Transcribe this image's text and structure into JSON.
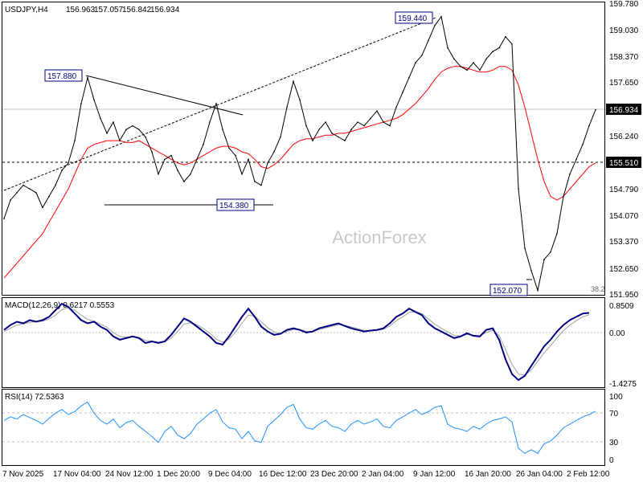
{
  "chart_data": {
    "type": "line",
    "symbol": "USDJPY,H4",
    "ohlc": [
      "156.963",
      "157.057",
      "156.842",
      "156.934"
    ],
    "watermark": "ActionForex",
    "colors": {
      "price": "#000000",
      "ma": "#ff0000",
      "macd": "#000080",
      "macd_signal": "#a0a0a0",
      "rsi": "#1e90ff",
      "label_border": "#000080",
      "grid_level": "#c0c0c0"
    },
    "price_axis": {
      "ticks": [
        "159.780",
        "159.030",
        "158.370",
        "157.650",
        "156.990",
        "156.240",
        "155.510",
        "154.790",
        "154.070",
        "153.370",
        "152.650",
        "151.950"
      ],
      "ylim": [
        151.95,
        159.78
      ]
    },
    "x_axis": {
      "ticks": [
        "7 Nov 2025",
        "17 Nov 04:00",
        "24 Nov 12:00",
        "1 Dec 20:00",
        "9 Dec 04:00",
        "16 Dec 12:00",
        "23 Dec 20:00",
        "2 Jan 04:00",
        "9 Jan 12:00",
        "16 Jan 20:00",
        "26 Jan 04:00",
        "2 Feb 12:00"
      ]
    },
    "current_price": {
      "value": 156.934,
      "label": "156.934"
    },
    "support_level": {
      "value": 155.51,
      "label": "155.510"
    },
    "annotations": [
      {
        "label": "157.880",
        "value": 157.88
      },
      {
        "label": "159.440",
        "value": 159.44
      },
      {
        "label": "154.380",
        "value": 154.38
      },
      {
        "label": "152.070",
        "value": 152.07
      }
    ],
    "fib_label": "38.2",
    "price_series": {
      "name": "USDJPY",
      "x": [
        0,
        8,
        16,
        24,
        32,
        40,
        48,
        56,
        64,
        72,
        80,
        88,
        96,
        104,
        112,
        120,
        128,
        136,
        144,
        152,
        160,
        168,
        176,
        184,
        192,
        200,
        208,
        216,
        224,
        232,
        240,
        248,
        256,
        264,
        272,
        280,
        288,
        296,
        304,
        312,
        320,
        328,
        336,
        344,
        352,
        360,
        368,
        376,
        384,
        392,
        400,
        408,
        416,
        424,
        432,
        440,
        448,
        456,
        464,
        472,
        480,
        488,
        496,
        504,
        512,
        520,
        528,
        536,
        544,
        552,
        560,
        568,
        576,
        584,
        592,
        600,
        608,
        616,
        624,
        632,
        640,
        648,
        656,
        664,
        672,
        680,
        688,
        696,
        704,
        712,
        720,
        728,
        736
      ],
      "values": [
        154.0,
        154.5,
        154.7,
        154.9,
        154.8,
        154.7,
        154.3,
        154.6,
        154.9,
        155.3,
        155.5,
        156.1,
        157.1,
        157.8,
        157.2,
        156.7,
        156.3,
        156.6,
        156.1,
        156.4,
        156.5,
        156.4,
        156.2,
        155.8,
        155.2,
        155.6,
        155.7,
        155.3,
        155.0,
        155.2,
        155.6,
        156.0,
        156.6,
        157.1,
        156.4,
        155.9,
        155.7,
        155.2,
        155.6,
        155.0,
        154.9,
        155.5,
        155.8,
        156.2,
        157.0,
        157.7,
        157.2,
        156.5,
        156.1,
        156.4,
        156.6,
        156.3,
        156.2,
        156.1,
        156.4,
        156.6,
        156.5,
        156.7,
        156.9,
        156.6,
        156.5,
        157.0,
        157.4,
        157.8,
        158.2,
        158.4,
        158.8,
        159.2,
        159.44,
        158.6,
        158.3,
        158.1,
        158.0,
        158.2,
        158.0,
        158.3,
        158.5,
        158.6,
        158.9,
        158.7,
        154.8,
        153.2,
        152.6,
        152.07,
        152.9,
        153.1,
        153.6,
        154.6,
        155.2,
        155.6,
        156.0,
        156.5,
        156.934
      ]
    },
    "ma_series": {
      "values": [
        152.4,
        152.6,
        152.8,
        153.0,
        153.2,
        153.4,
        153.6,
        153.9,
        154.2,
        154.5,
        154.8,
        155.2,
        155.6,
        155.9,
        156.0,
        156.05,
        156.1,
        156.1,
        156.1,
        156.05,
        156.05,
        156.1,
        156.0,
        155.9,
        155.8,
        155.7,
        155.6,
        155.5,
        155.45,
        155.5,
        155.6,
        155.7,
        155.8,
        155.9,
        155.95,
        155.95,
        155.9,
        155.8,
        155.75,
        155.6,
        155.4,
        155.35,
        155.45,
        155.6,
        155.8,
        156.0,
        156.1,
        156.15,
        156.15,
        156.2,
        156.25,
        156.25,
        156.3,
        156.3,
        156.35,
        156.4,
        156.45,
        156.5,
        156.55,
        156.6,
        156.65,
        156.7,
        156.8,
        156.95,
        157.1,
        157.3,
        157.5,
        157.75,
        157.95,
        158.05,
        158.1,
        158.1,
        158.05,
        158.0,
        157.95,
        157.95,
        158.0,
        158.1,
        158.1,
        158.0,
        157.6,
        157.0,
        156.3,
        155.6,
        155.0,
        154.6,
        154.5,
        154.6,
        154.8,
        155.0,
        155.2,
        155.4,
        155.5
      ]
    },
    "macd_panel": {
      "label": "MACD(12,26,9) 0.6217 0.5553",
      "ticks": [
        "0.8509",
        "0.00",
        "-1.4275"
      ],
      "ylim": [
        -1.6,
        1.0
      ],
      "macd": [
        0.1,
        0.25,
        0.35,
        0.3,
        0.4,
        0.35,
        0.4,
        0.5,
        0.7,
        0.9,
        0.8,
        0.6,
        0.4,
        0.3,
        0.35,
        0.2,
        0.1,
        -0.1,
        -0.2,
        -0.15,
        -0.1,
        -0.15,
        -0.3,
        -0.25,
        -0.3,
        -0.25,
        -0.05,
        0.2,
        0.45,
        0.35,
        0.2,
        0.05,
        -0.1,
        -0.3,
        -0.35,
        -0.1,
        0.2,
        0.5,
        0.75,
        0.5,
        0.2,
        0.05,
        -0.05,
        -0.02,
        0.1,
        0.15,
        0.1,
        0.02,
        0.05,
        0.15,
        0.2,
        0.25,
        0.3,
        0.22,
        0.15,
        0.1,
        0.05,
        0.08,
        0.1,
        0.15,
        0.3,
        0.5,
        0.6,
        0.75,
        0.65,
        0.55,
        0.3,
        0.15,
        0.05,
        -0.05,
        -0.15,
        -0.1,
        0.0,
        -0.08,
        -0.1,
        0.1,
        0.15,
        -0.2,
        -0.8,
        -1.25,
        -1.43,
        -1.3,
        -1.0,
        -0.7,
        -0.4,
        -0.2,
        0.05,
        0.25,
        0.4,
        0.5,
        0.6,
        0.62
      ],
      "signal": [
        0.05,
        0.15,
        0.25,
        0.28,
        0.33,
        0.35,
        0.37,
        0.43,
        0.55,
        0.72,
        0.78,
        0.7,
        0.55,
        0.42,
        0.37,
        0.28,
        0.18,
        0.02,
        -0.1,
        -0.12,
        -0.11,
        -0.13,
        -0.22,
        -0.24,
        -0.27,
        -0.26,
        -0.15,
        0.05,
        0.28,
        0.32,
        0.26,
        0.14,
        0.0,
        -0.18,
        -0.28,
        -0.18,
        0.03,
        0.3,
        0.55,
        0.52,
        0.35,
        0.17,
        0.04,
        -0.01,
        0.05,
        0.11,
        0.11,
        0.06,
        0.05,
        0.11,
        0.16,
        0.21,
        0.26,
        0.24,
        0.19,
        0.14,
        0.09,
        0.08,
        0.09,
        0.12,
        0.22,
        0.38,
        0.5,
        0.64,
        0.65,
        0.6,
        0.43,
        0.28,
        0.15,
        0.04,
        -0.07,
        -0.09,
        -0.04,
        -0.06,
        -0.08,
        0.02,
        0.09,
        -0.07,
        -0.5,
        -0.95,
        -1.25,
        -1.28,
        -1.12,
        -0.86,
        -0.6,
        -0.38,
        -0.14,
        0.08,
        0.25,
        0.38,
        0.5,
        0.56
      ]
    },
    "rsi_panel": {
      "label": "RSI(14) 72.5363",
      "ticks": [
        "100",
        "70",
        "30",
        "0"
      ],
      "ylim": [
        0,
        100
      ],
      "levels": [
        70,
        30
      ],
      "values": [
        60,
        65,
        62,
        68,
        64,
        60,
        55,
        63,
        70,
        75,
        68,
        72,
        80,
        85,
        70,
        60,
        55,
        62,
        50,
        57,
        60,
        52,
        45,
        38,
        30,
        45,
        52,
        40,
        35,
        42,
        55,
        62,
        70,
        75,
        58,
        50,
        48,
        35,
        45,
        32,
        30,
        52,
        60,
        68,
        78,
        82,
        62,
        50,
        48,
        55,
        60,
        52,
        50,
        45,
        55,
        60,
        55,
        58,
        62,
        52,
        50,
        60,
        65,
        70,
        75,
        68,
        72,
        78,
        80,
        55,
        50,
        48,
        45,
        52,
        48,
        55,
        60,
        62,
        65,
        58,
        22,
        15,
        20,
        15,
        28,
        32,
        40,
        50,
        55,
        60,
        65,
        68,
        72.5
      ]
    }
  }
}
